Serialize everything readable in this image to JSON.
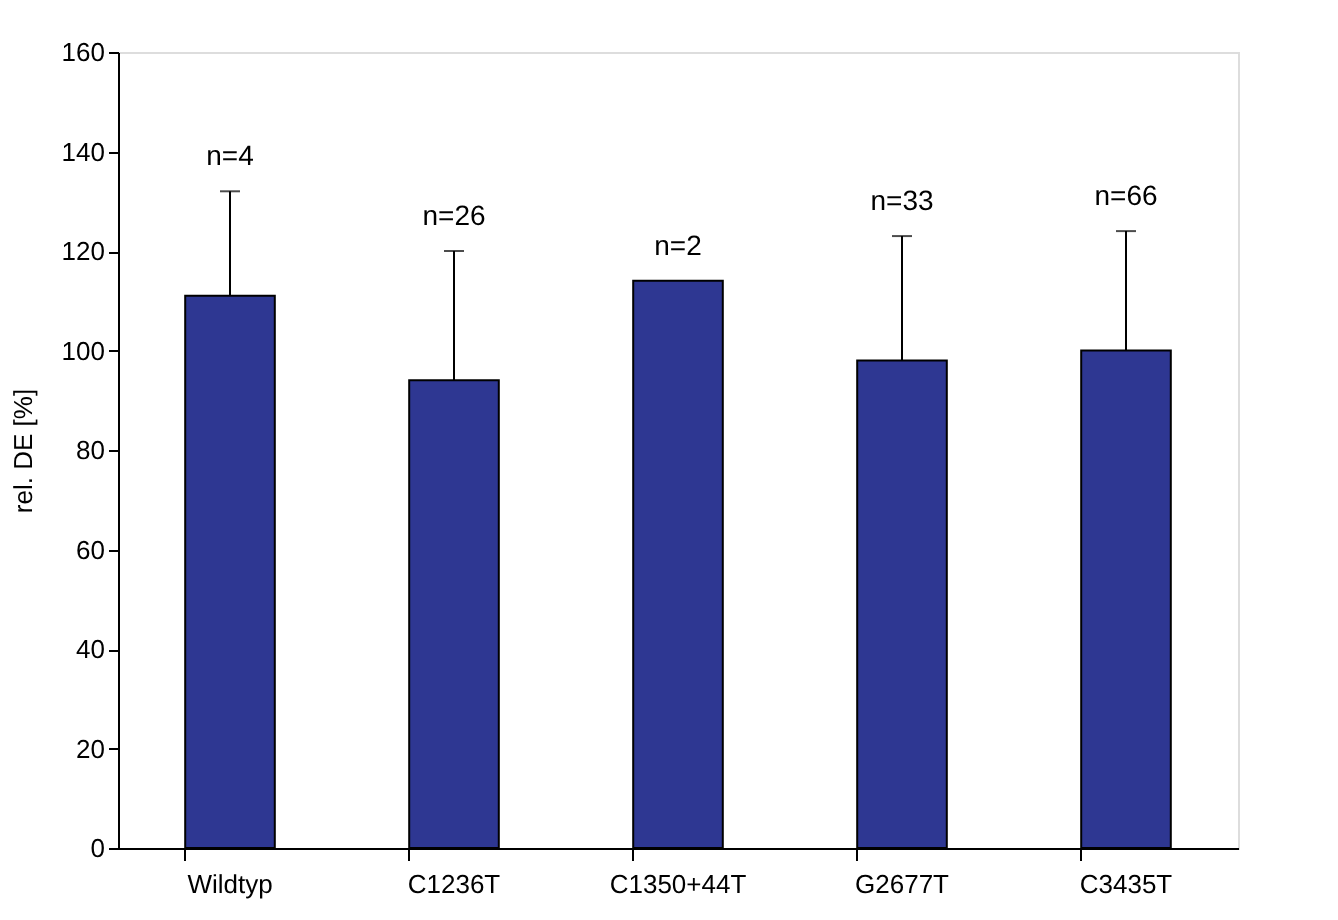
{
  "chart_data": {
    "type": "bar",
    "ylabel": "rel. DE [%]",
    "categories": [
      "Wildtyp",
      "C1236T",
      "C1350+44T",
      "G2677T",
      "C3435T"
    ],
    "values": [
      111,
      94,
      114,
      98,
      100
    ],
    "errors": [
      [
        111,
        132
      ],
      [
        94,
        120
      ],
      null,
      [
        98,
        123
      ],
      [
        100,
        124
      ]
    ],
    "color": "#2e3792",
    "ylim": [
      0,
      160
    ],
    "yticks": [
      0,
      20,
      40,
      60,
      80,
      100,
      120,
      140,
      160
    ],
    "grid": false,
    "annotations": [
      "n=4",
      "n=26",
      "n=2",
      "n=33",
      "n=66"
    ]
  }
}
